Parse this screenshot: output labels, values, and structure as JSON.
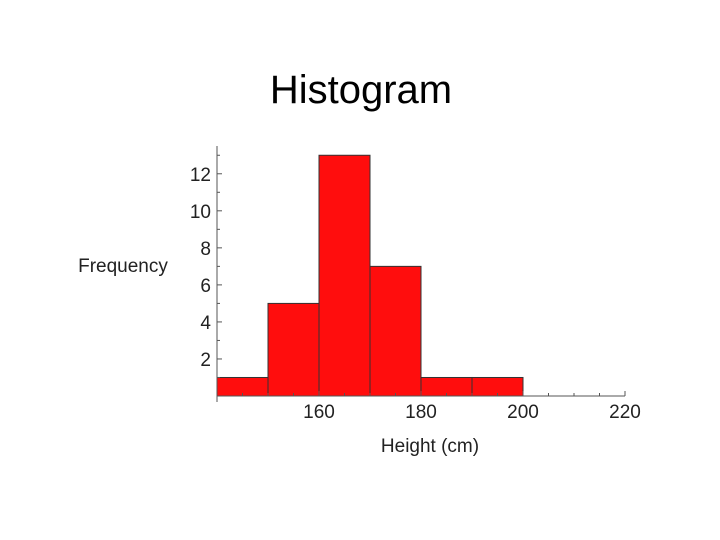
{
  "chart_data": {
    "type": "bar",
    "title": "Histogram",
    "xlabel": "Height (cm)",
    "ylabel": "Frequency",
    "bins": [
      {
        "from": 140,
        "to": 150,
        "value": 1
      },
      {
        "from": 150,
        "to": 160,
        "value": 5
      },
      {
        "from": 160,
        "to": 170,
        "value": 13
      },
      {
        "from": 170,
        "to": 180,
        "value": 7
      },
      {
        "from": 180,
        "to": 190,
        "value": 1
      },
      {
        "from": 190,
        "to": 200,
        "value": 1
      }
    ],
    "xlim": [
      140,
      220
    ],
    "ylim": [
      0,
      13.5
    ],
    "x_ticks": [
      160,
      180,
      200,
      220
    ],
    "y_ticks": [
      2,
      4,
      6,
      8,
      10,
      12
    ],
    "grid": false,
    "bar_color": "#ff0d0d"
  }
}
